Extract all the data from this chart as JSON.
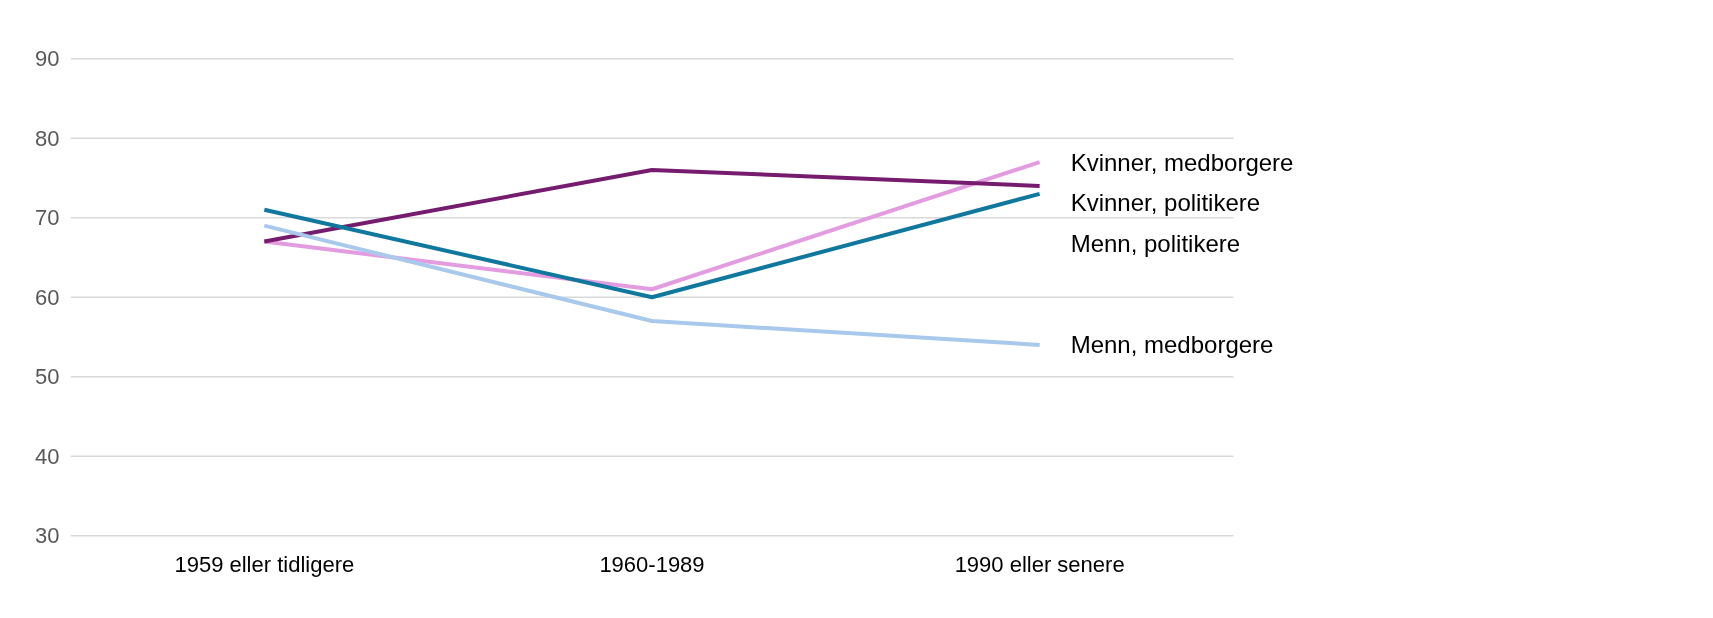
{
  "chart_data": {
    "type": "line",
    "categories": [
      "1959 eller tidligere",
      "1960-1989",
      "1990 eller senere"
    ],
    "series": [
      {
        "name": "Kvinner, medborgere",
        "color": "#e49ce0",
        "values": [
          67,
          61,
          77
        ]
      },
      {
        "name": "Kvinner, politikere",
        "color": "#761c6e",
        "values": [
          67,
          76,
          74
        ]
      },
      {
        "name": "Menn, politikere",
        "color": "#10789e",
        "values": [
          71,
          60,
          73
        ]
      },
      {
        "name": "Menn, medborgere",
        "color": "#a8c9eb",
        "values": [
          69,
          57,
          54
        ]
      }
    ],
    "ylim": [
      30,
      90
    ],
    "yticks": [
      30,
      40,
      50,
      60,
      70,
      80,
      90
    ],
    "grid": "y",
    "marker": "none",
    "line_style": "solid"
  }
}
